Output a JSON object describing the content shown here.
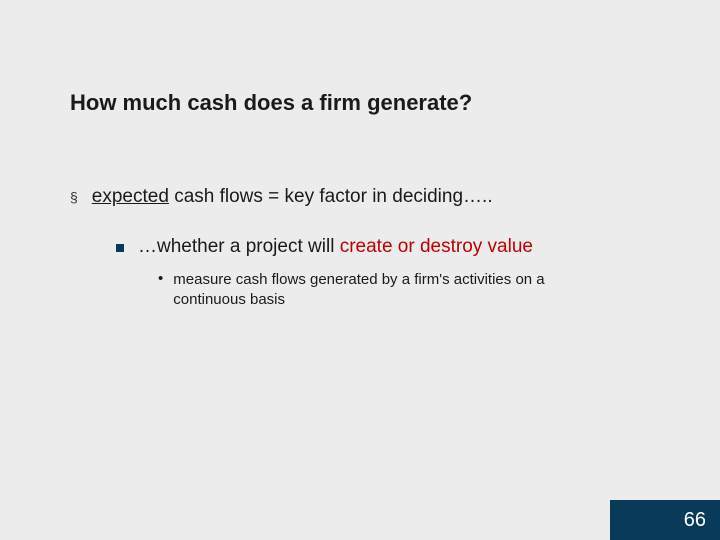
{
  "slide": {
    "title": "How much cash does a firm generate?",
    "title_fontsize": 22,
    "title_color": "#1a1a1a",
    "background_color": "#ececec",
    "level1": {
      "bullet_char": "§",
      "bullet_color": "#333333",
      "underlined_word": "expected",
      "rest_text": " cash flows = key factor in deciding…..",
      "fontsize": 19,
      "text_color": "#1a1a1a"
    },
    "level2": {
      "bullet_color": "#0a3a5a",
      "bullet_size": 8,
      "prefix_text": "…whether a project will ",
      "red_text": "create or destroy value",
      "red_color": "#c00000",
      "fontsize": 19
    },
    "level3": {
      "bullet_char": "•",
      "text": "measure cash flows generated by a firm's activities on a continuous basis",
      "fontsize": 15,
      "text_color": "#1a1a1a"
    }
  },
  "footer": {
    "page_number": "66",
    "background_color": "#0a3a5a",
    "text_color": "#ffffff",
    "fontsize": 20
  }
}
